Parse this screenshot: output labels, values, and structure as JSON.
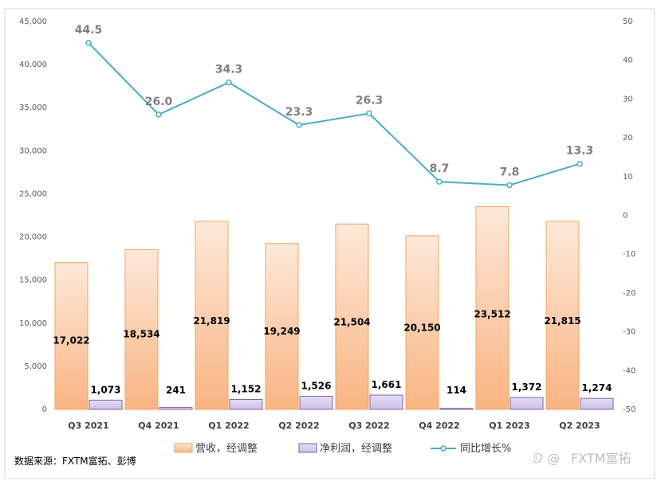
{
  "chart_data": {
    "type": "bar",
    "categories": [
      "Q3 2021",
      "Q4 2021",
      "Q1 2022",
      "Q2 2022",
      "Q3 2022",
      "Q4 2022",
      "Q1 2023",
      "Q2 2023"
    ],
    "series": [
      {
        "name": "营收，经调整",
        "type": "bar",
        "axis": "left",
        "values": [
          17022,
          18534,
          21819,
          19249,
          21504,
          20150,
          23512,
          21815
        ],
        "labels": [
          "17,022",
          "18,534",
          "21,819",
          "19,249",
          "21,504",
          "20,150",
          "23,512",
          "21,815"
        ],
        "color": "#f8c9a0"
      },
      {
        "name": "净利润，经调整",
        "type": "bar",
        "axis": "left",
        "values": [
          1073,
          241,
          1152,
          1526,
          1661,
          114,
          1372,
          1274
        ],
        "labels": [
          "1,073",
          "241",
          "1,152",
          "1,526",
          "1,661",
          "114",
          "1,372",
          "1,274"
        ],
        "color": "#d6ccef"
      },
      {
        "name": "同比增长%",
        "type": "line",
        "axis": "right",
        "values": [
          44.5,
          26.0,
          34.3,
          23.3,
          26.3,
          8.7,
          7.8,
          13.3
        ],
        "labels": [
          "44.5",
          "26.0",
          "34.3",
          "23.3",
          "26.3",
          "8.7",
          "7.8",
          "13.3"
        ],
        "color": "#4bacc6"
      }
    ],
    "y_left": {
      "min": 0,
      "max": 45000,
      "step": 5000,
      "ticks": [
        "0",
        "5,000",
        "10,000",
        "15,000",
        "20,000",
        "25,000",
        "30,000",
        "35,000",
        "40,000",
        "45,000"
      ]
    },
    "y_right": {
      "min": -50,
      "max": 50,
      "step": 10,
      "ticks": [
        "-50",
        "-40",
        "-30",
        "-20",
        "-10",
        "0",
        "10",
        "20",
        "30",
        "40",
        "50"
      ]
    },
    "grid": false,
    "legend_position": "bottom"
  },
  "source": "数据来源：FXTM富拓、彭博",
  "watermark": "FXTM富拓"
}
